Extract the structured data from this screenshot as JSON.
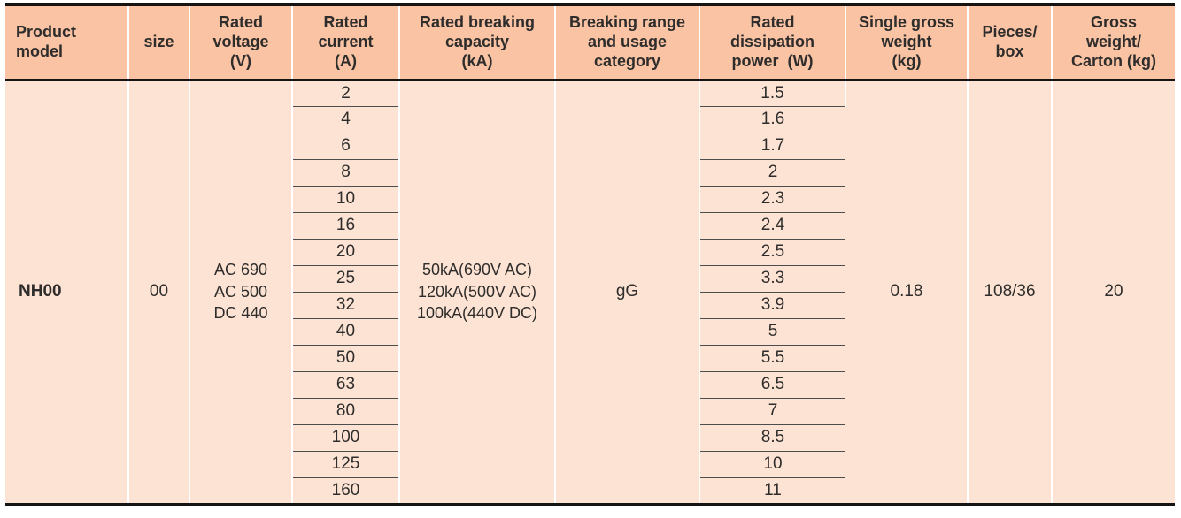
{
  "table": {
    "headers": [
      "Product\nmodel",
      "size",
      "Rated\nvoltage\n(V)",
      "Rated\ncurrent\n(A)",
      "Rated breaking\ncapacity\n(kA)",
      "Breaking range\nand usage\ncategory",
      "Rated\ndissipation\npower  (W)",
      "Single gross\nweight\n(kg)",
      "Pieces/\nbox",
      "Gross\nweight/\nCarton (kg)"
    ],
    "row": {
      "model": "NH00",
      "size": "00",
      "voltage": "AC 690\nAC 500\nDC 440",
      "breaking": "50kA(690V AC)\n120kA(500V AC)\n100kA(440V DC)",
      "category": "gG",
      "weight": "0.18",
      "pieces": "108/36",
      "gross": "20"
    },
    "currents": [
      "2",
      "4",
      "6",
      "8",
      "10",
      "16",
      "20",
      "25",
      "32",
      "40",
      "50",
      "63",
      "80",
      "100",
      "125",
      "160"
    ],
    "dissipation": [
      "1.5",
      "1.6",
      "1.7",
      "2",
      "2.3",
      "2.4",
      "2.5",
      "3.3",
      "3.9",
      "5",
      "5.5",
      "6.5",
      "7",
      "8.5",
      "10",
      "11"
    ]
  },
  "colors": {
    "header_bg": "#f9c3a4",
    "body_bg": "#fde3d3",
    "text": "#2e2d2c",
    "heavy_line": "#151413",
    "row_line": "#4d4d4d",
    "column_separator": "#ffffff"
  }
}
